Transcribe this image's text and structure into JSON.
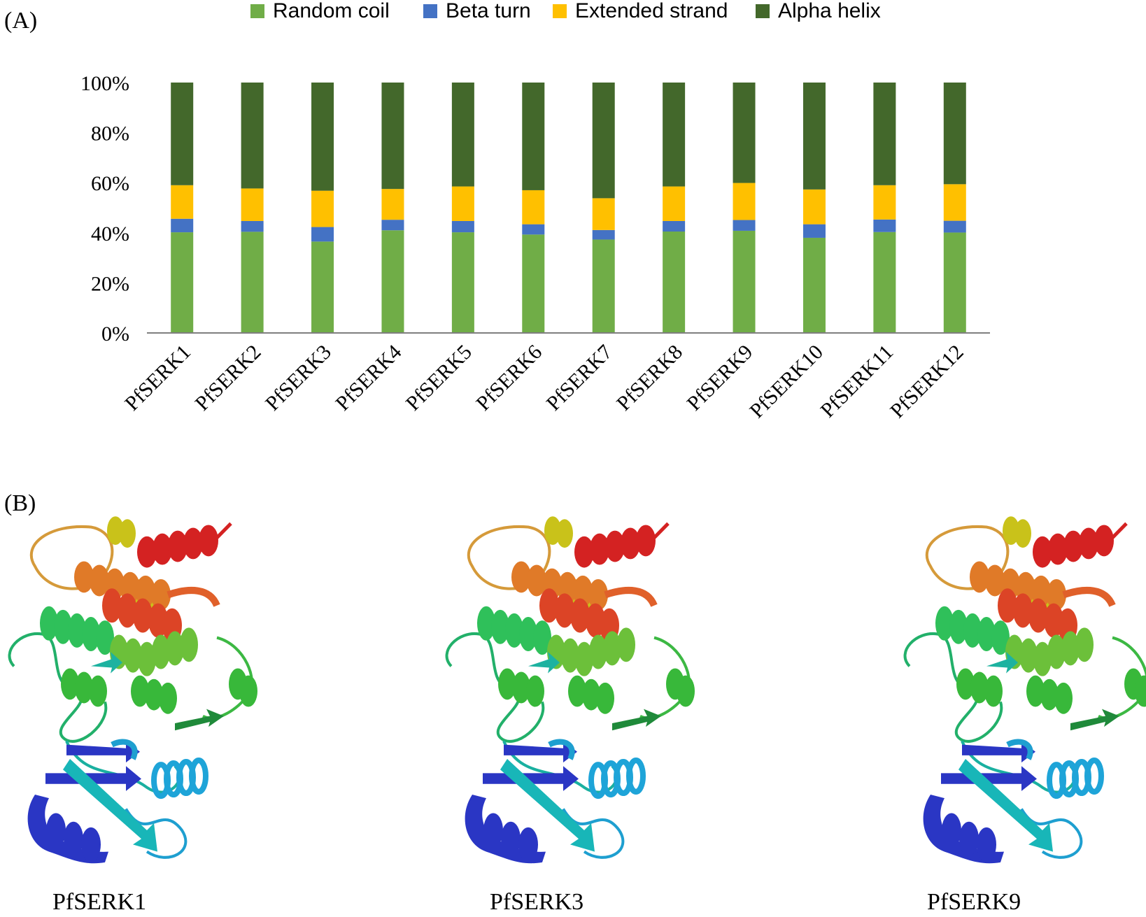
{
  "panel_a_label": "(A)",
  "panel_b_label": "(B)",
  "chart_data": {
    "type": "bar",
    "stacked": true,
    "title": "",
    "xlabel": "",
    "ylabel": "",
    "ylim": [
      0,
      100
    ],
    "yticks": [
      "0%",
      "20%",
      "40%",
      "60%",
      "80%",
      "100%"
    ],
    "legend_position": "top",
    "categories": [
      "PfSERK1",
      "PfSERK2",
      "PfSERK3",
      "PfSERK4",
      "PfSERK5",
      "PfSERK6",
      "PfSERK7",
      "PfSERK8",
      "PfSERK9",
      "PfSERK10",
      "PfSERK11",
      "PfSERK12"
    ],
    "series": [
      {
        "name": "Random coil",
        "color": "#70AD47",
        "values": [
          40.2,
          40.4,
          36.5,
          41.0,
          40.2,
          39.3,
          37.3,
          40.5,
          40.8,
          38.0,
          40.3,
          40.1
        ]
      },
      {
        "name": "Beta turn",
        "color": "#4472C4",
        "values": [
          5.4,
          4.3,
          5.8,
          4.2,
          4.5,
          4.1,
          3.8,
          4.2,
          4.3,
          5.4,
          5.0,
          4.7
        ]
      },
      {
        "name": "Extended strand",
        "color": "#FFC000",
        "values": [
          13.4,
          13.0,
          14.5,
          12.3,
          13.8,
          13.6,
          12.7,
          13.8,
          14.8,
          13.9,
          13.7,
          14.6
        ]
      },
      {
        "name": "Alpha helix",
        "color": "#43682B",
        "values": [
          41.0,
          42.3,
          43.2,
          42.5,
          41.5,
          43.0,
          46.2,
          41.5,
          40.1,
          42.7,
          41.0,
          40.6
        ]
      }
    ]
  },
  "structures": [
    {
      "name": "PfSERK1"
    },
    {
      "name": "PfSERK3"
    },
    {
      "name": "PfSERK9"
    }
  ]
}
